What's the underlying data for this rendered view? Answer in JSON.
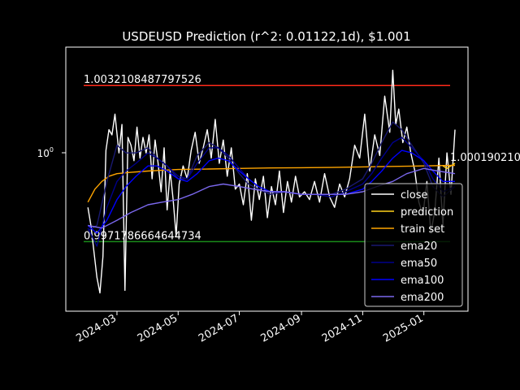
{
  "chart_data": {
    "type": "line",
    "title": "USDEUSD Prediction (r^2: 0.01122,1d), $1.001",
    "xlabel": "",
    "ylabel": "",
    "y_scale": "log",
    "y_tick": {
      "label": "10",
      "exponent": "0",
      "value": 1.0
    },
    "x_ticks": [
      "2024-03",
      "2024-05",
      "2024-07",
      "2024-09",
      "2024-11",
      "2025-01"
    ],
    "x_range": [
      "2024-01-10",
      "2025-02-14"
    ],
    "y_range": [
      0.9945,
      1.0047
    ],
    "grid": false,
    "legend_position": "lower-right",
    "hlines": [
      {
        "name": "upper",
        "value": 1.0032108487797526,
        "label": "1.0032108487797526",
        "color": "#ff2a1a"
      },
      {
        "name": "lower",
        "value": 0.9971786664644734,
        "label": "0.9971786664644734",
        "color": "#1a8c1a"
      }
    ],
    "end_label": "1.000190210",
    "series": [
      {
        "name": "close",
        "color": "#ffffff",
        "width": 1.4,
        "x": [
          "2024-02-01",
          "2024-02-04",
          "2024-02-07",
          "2024-02-10",
          "2024-02-13",
          "2024-02-16",
          "2024-02-19",
          "2024-02-22",
          "2024-02-25",
          "2024-02-28",
          "2024-03-03",
          "2024-03-06",
          "2024-03-09",
          "2024-03-12",
          "2024-03-15",
          "2024-03-18",
          "2024-03-21",
          "2024-03-24",
          "2024-03-27",
          "2024-03-30",
          "2024-04-02",
          "2024-04-05",
          "2024-04-08",
          "2024-04-11",
          "2024-04-14",
          "2024-04-17",
          "2024-04-20",
          "2024-04-23",
          "2024-04-26",
          "2024-04-29",
          "2024-05-02",
          "2024-05-06",
          "2024-05-10",
          "2024-05-14",
          "2024-05-18",
          "2024-05-22",
          "2024-05-26",
          "2024-05-30",
          "2024-06-03",
          "2024-06-07",
          "2024-06-11",
          "2024-06-15",
          "2024-06-19",
          "2024-06-23",
          "2024-06-27",
          "2024-07-01",
          "2024-07-05",
          "2024-07-09",
          "2024-07-13",
          "2024-07-17",
          "2024-07-21",
          "2024-07-25",
          "2024-07-29",
          "2024-08-02",
          "2024-08-06",
          "2024-08-10",
          "2024-08-14",
          "2024-08-18",
          "2024-08-22",
          "2024-08-26",
          "2024-08-30",
          "2024-09-04",
          "2024-09-09",
          "2024-09-14",
          "2024-09-19",
          "2024-09-24",
          "2024-09-29",
          "2024-10-04",
          "2024-10-09",
          "2024-10-14",
          "2024-10-19",
          "2024-10-24",
          "2024-10-29",
          "2024-11-03",
          "2024-11-08",
          "2024-11-13",
          "2024-11-18",
          "2024-11-23",
          "2024-11-28",
          "2024-12-01",
          "2024-12-04",
          "2024-12-07",
          "2024-12-11",
          "2024-12-15",
          "2024-12-19",
          "2024-12-23",
          "2024-12-27",
          "2024-12-31",
          "2025-01-04",
          "2025-01-08",
          "2025-01-12",
          "2025-01-16",
          "2025-01-20",
          "2025-01-24",
          "2025-01-28",
          "2025-02-01"
        ],
        "values": [
          0.9985,
          0.9978,
          0.9968,
          0.9958,
          0.9952,
          0.9966,
          1.0007,
          1.0015,
          1.0013,
          1.0021,
          1.0006,
          1.0017,
          0.9953,
          1.0012,
          1.0009,
          1.0003,
          1.0016,
          1.0004,
          1.0012,
          1.0006,
          1.0013,
          0.9996,
          1.0011,
          1.0002,
          0.9991,
          1.0008,
          0.9984,
          0.9999,
          0.9988,
          0.9974,
          0.9994,
          1.0001,
          0.9996,
          1.0007,
          1.0014,
          1.0002,
          1.0008,
          1.0015,
          1.0004,
          1.0019,
          1.0002,
          1.0011,
          0.9997,
          1.0008,
          0.9992,
          0.9994,
          0.9986,
          0.9998,
          0.998,
          0.9996,
          0.9988,
          0.9997,
          0.9981,
          0.9993,
          0.9986,
          0.9999,
          0.9983,
          0.9995,
          0.9987,
          0.9997,
          0.9989,
          0.9991,
          0.9988,
          0.9995,
          0.9987,
          0.9998,
          0.9989,
          0.9985,
          0.9994,
          0.9989,
          0.9996,
          1.0009,
          1.0004,
          1.0021,
          0.9999,
          1.0013,
          1.0005,
          1.0028,
          1.0014,
          1.0038,
          1.0017,
          1.0023,
          1.001,
          1.0016,
          1.0006,
          0.9999,
          0.9987,
          0.9982,
          0.9995,
          0.9975,
          0.9984,
          1.0004,
          0.9978,
          1.0006,
          0.999,
          1.0015
        ]
      },
      {
        "name": "prediction",
        "color": "#ffd11a",
        "width": 1.4,
        "x": [
          "2025-01-20",
          "2025-01-24",
          "2025-01-28",
          "2025-02-01"
        ],
        "values": [
          1.0001,
          1.0,
          1.0001,
          1.0002
        ]
      },
      {
        "name": "train set",
        "color": "#ffa500",
        "width": 1.4,
        "x": [
          "2024-02-01",
          "2024-02-08",
          "2024-02-15",
          "2024-02-22",
          "2024-03-01",
          "2024-03-15",
          "2024-04-01",
          "2024-04-15",
          "2024-05-01",
          "2024-06-01",
          "2024-07-01",
          "2024-08-01",
          "2024-09-01",
          "2024-10-01",
          "2024-11-01",
          "2024-12-01",
          "2025-01-01",
          "2025-02-01"
        ],
        "values": [
          0.9987,
          0.9992,
          0.9995,
          0.9997,
          0.9998,
          0.99985,
          0.9999,
          0.99993,
          0.99996,
          0.99998,
          1.0,
          1.00002,
          1.00003,
          1.00004,
          1.00006,
          1.00008,
          1.0001,
          1.00012
        ]
      },
      {
        "name": "ema20",
        "color": "#191970",
        "width": 1.4,
        "x": [
          "2024-02-01",
          "2024-02-10",
          "2024-02-20",
          "2024-03-01",
          "2024-03-10",
          "2024-03-20",
          "2024-04-01",
          "2024-04-10",
          "2024-04-20",
          "2024-05-01",
          "2024-05-10",
          "2024-05-20",
          "2024-06-01",
          "2024-06-10",
          "2024-06-20",
          "2024-07-01",
          "2024-07-10",
          "2024-07-20",
          "2024-08-01",
          "2024-08-15",
          "2024-09-01",
          "2024-09-15",
          "2024-10-01",
          "2024-10-15",
          "2024-11-01",
          "2024-11-10",
          "2024-11-20",
          "2024-12-01",
          "2024-12-10",
          "2024-12-20",
          "2025-01-01",
          "2025-01-10",
          "2025-01-20",
          "2025-02-01"
        ],
        "values": [
          0.9976,
          0.9978,
          0.9995,
          1.0009,
          1.0006,
          1.0006,
          1.0008,
          1.0004,
          1.0001,
          0.9996,
          0.9996,
          1.0005,
          1.001,
          1.0008,
          1.0004,
          0.9998,
          0.9994,
          0.9992,
          0.999,
          0.9991,
          0.999,
          0.999,
          0.999,
          0.9992,
          0.9996,
          1.0002,
          1.001,
          1.0018,
          1.0015,
          1.0009,
          1.0002,
          0.9993,
          0.9989,
          0.9993
        ]
      },
      {
        "name": "ema50",
        "color": "#00008b",
        "width": 1.4,
        "x": [
          "2024-02-01",
          "2024-02-10",
          "2024-02-20",
          "2024-03-01",
          "2024-03-10",
          "2024-03-20",
          "2024-04-01",
          "2024-04-10",
          "2024-04-20",
          "2024-05-01",
          "2024-05-10",
          "2024-05-20",
          "2024-06-01",
          "2024-06-10",
          "2024-06-20",
          "2024-07-01",
          "2024-07-10",
          "2024-07-20",
          "2024-08-01",
          "2024-08-15",
          "2024-09-01",
          "2024-09-15",
          "2024-10-01",
          "2024-10-15",
          "2024-11-01",
          "2024-11-10",
          "2024-11-20",
          "2024-12-01",
          "2024-12-10",
          "2024-12-20",
          "2025-01-01",
          "2025-01-10",
          "2025-01-20",
          "2025-02-01"
        ],
        "values": [
          0.9977,
          0.997,
          0.9985,
          0.9995,
          0.9999,
          1.0002,
          1.0006,
          1.0004,
          1.0001,
          0.9997,
          0.9996,
          1.0002,
          1.0008,
          1.0008,
          1.0005,
          1.0,
          0.9996,
          0.9993,
          0.9991,
          0.9991,
          0.999,
          0.999,
          0.9989,
          0.9991,
          0.9994,
          0.9998,
          1.0004,
          1.001,
          1.0012,
          1.0008,
          1.0003,
          0.9996,
          0.9991,
          0.9993
        ]
      },
      {
        "name": "ema100",
        "color": "#0000ff",
        "width": 1.4,
        "x": [
          "2024-02-01",
          "2024-02-10",
          "2024-02-20",
          "2024-03-01",
          "2024-03-10",
          "2024-03-20",
          "2024-04-01",
          "2024-04-10",
          "2024-04-20",
          "2024-05-01",
          "2024-05-10",
          "2024-05-20",
          "2024-06-01",
          "2024-06-10",
          "2024-06-20",
          "2024-07-01",
          "2024-07-10",
          "2024-07-20",
          "2024-08-01",
          "2024-08-15",
          "2024-09-01",
          "2024-09-15",
          "2024-10-01",
          "2024-10-15",
          "2024-11-01",
          "2024-11-10",
          "2024-11-20",
          "2024-12-01",
          "2024-12-10",
          "2024-12-20",
          "2025-01-01",
          "2025-01-10",
          "2025-01-20",
          "2025-02-01"
        ],
        "values": [
          0.9978,
          0.9975,
          0.998,
          0.9988,
          0.9993,
          0.9997,
          1.0001,
          1.0001,
          0.9999,
          0.9996,
          0.9995,
          0.9998,
          1.0003,
          1.0004,
          1.0003,
          0.9999,
          0.9996,
          0.9993,
          0.9991,
          0.9991,
          0.999,
          0.999,
          0.999,
          0.999,
          0.9992,
          0.9995,
          0.9999,
          1.0004,
          1.0007,
          1.0006,
          1.0003,
          0.9999,
          0.9995,
          0.9995
        ]
      },
      {
        "name": "ema200",
        "color": "#7b68ee",
        "width": 1.4,
        "x": [
          "2024-02-01",
          "2024-02-15",
          "2024-03-01",
          "2024-03-15",
          "2024-04-01",
          "2024-04-15",
          "2024-05-01",
          "2024-05-15",
          "2024-06-01",
          "2024-06-15",
          "2024-07-01",
          "2024-07-15",
          "2024-08-01",
          "2024-08-15",
          "2024-09-01",
          "2024-09-15",
          "2024-10-01",
          "2024-10-15",
          "2024-11-01",
          "2024-11-15",
          "2024-12-01",
          "2024-12-15",
          "2025-01-01",
          "2025-01-15",
          "2025-02-01"
        ],
        "values": [
          0.9978,
          0.9977,
          0.998,
          0.9983,
          0.9986,
          0.9987,
          0.9988,
          0.999,
          0.9993,
          0.9994,
          0.9993,
          0.9992,
          0.9991,
          0.9991,
          0.999,
          0.999,
          0.999,
          0.999,
          0.9991,
          0.9993,
          0.9995,
          0.9998,
          1.0,
          0.9999,
          0.9998
        ]
      }
    ]
  }
}
